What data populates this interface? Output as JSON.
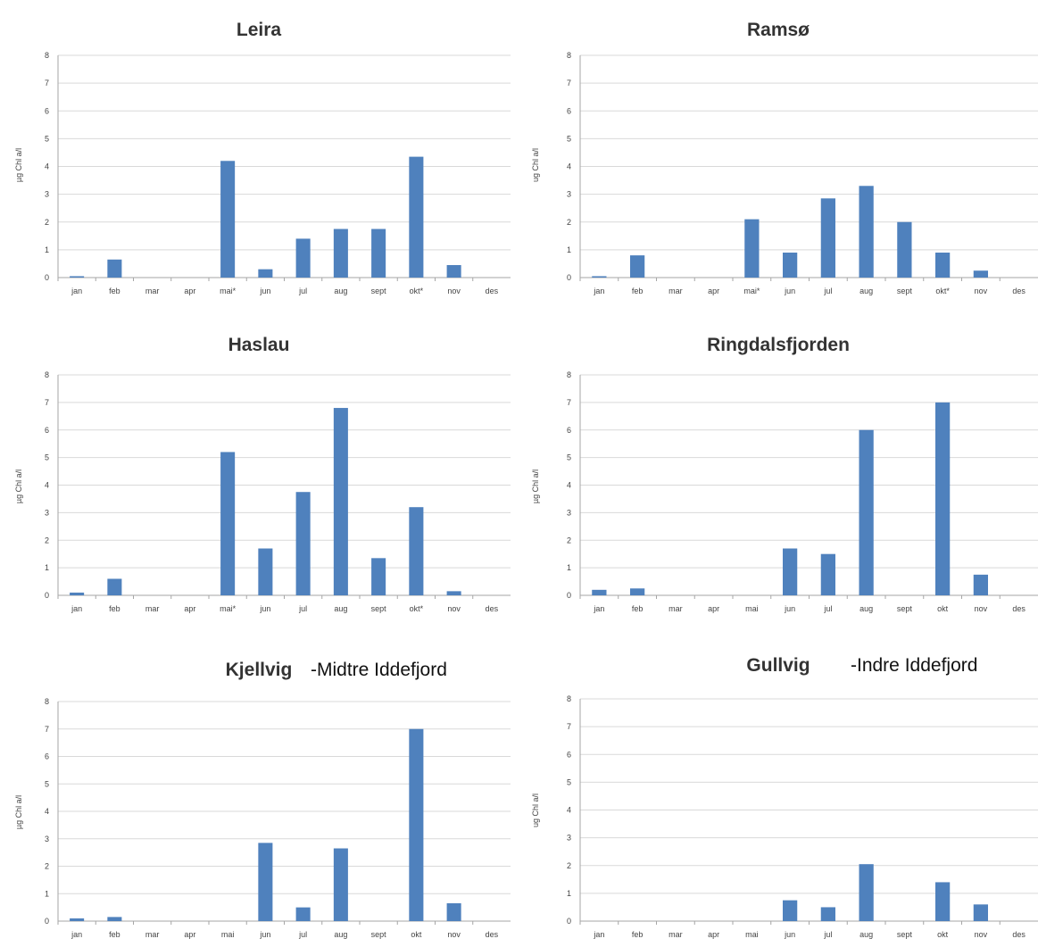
{
  "colors": {
    "bar": "#4f81bd",
    "grid": "#d9d9d9",
    "axis": "#a6a6a6"
  },
  "chart_data": [
    {
      "type": "bar",
      "title": "Leira",
      "subtitle": "",
      "ylabel": "µg Chl a/l",
      "ylim": [
        0,
        8
      ],
      "yticks": [
        "0",
        "1",
        "2",
        "3",
        "4",
        "5",
        "6",
        "7",
        "8"
      ],
      "categories": [
        "jan",
        "feb",
        "mar",
        "apr",
        "mai*",
        "jun",
        "jul",
        "aug",
        "sept",
        "okt*",
        "nov",
        "des"
      ],
      "values": [
        0.05,
        0.65,
        null,
        null,
        4.2,
        0.3,
        1.4,
        1.75,
        1.75,
        4.35,
        0.45,
        null
      ],
      "grid": true
    },
    {
      "type": "bar",
      "title": "Ramsø",
      "subtitle": "",
      "ylabel": "ug Chl a/l",
      "ylim": [
        0,
        8
      ],
      "yticks": [
        "0",
        "1",
        "2",
        "3",
        "4",
        "5",
        "6",
        "7",
        "8"
      ],
      "categories": [
        "jan",
        "feb",
        "mar",
        "apr",
        "mai*",
        "jun",
        "jul",
        "aug",
        "sept",
        "okt*",
        "nov",
        "des"
      ],
      "values": [
        0.05,
        0.8,
        null,
        null,
        2.1,
        0.9,
        2.85,
        3.3,
        2.0,
        0.9,
        0.25,
        null
      ],
      "grid": true
    },
    {
      "type": "bar",
      "title": "Haslau",
      "subtitle": "",
      "ylabel": "µg Chl a/l",
      "ylim": [
        0,
        8
      ],
      "yticks": [
        "0",
        "1",
        "2",
        "3",
        "4",
        "5",
        "6",
        "7",
        "8"
      ],
      "categories": [
        "jan",
        "feb",
        "mar",
        "apr",
        "mai*",
        "jun",
        "jul",
        "aug",
        "sept",
        "okt*",
        "nov",
        "des"
      ],
      "values": [
        0.1,
        0.6,
        null,
        null,
        5.2,
        1.7,
        3.75,
        6.8,
        1.35,
        3.2,
        0.15,
        null
      ],
      "grid": true
    },
    {
      "type": "bar",
      "title": "Ringdalsfjorden",
      "subtitle": "",
      "ylabel": "µg Chl a/l",
      "ylim": [
        0,
        8
      ],
      "yticks": [
        "0",
        "1",
        "2",
        "3",
        "4",
        "5",
        "6",
        "7",
        "8"
      ],
      "categories": [
        "jan",
        "feb",
        "mar",
        "apr",
        "mai",
        "jun",
        "jul",
        "aug",
        "sept",
        "okt",
        "nov",
        "des"
      ],
      "values": [
        0.2,
        0.25,
        null,
        null,
        null,
        1.7,
        1.5,
        6.0,
        null,
        7.0,
        0.75,
        null
      ],
      "grid": true
    },
    {
      "type": "bar",
      "title": "Kjellvig",
      "subtitle": "-Midtre Iddefjord",
      "ylabel": "µg Chl a/l",
      "ylim": [
        0,
        8
      ],
      "yticks": [
        "0",
        "1",
        "2",
        "3",
        "4",
        "5",
        "6",
        "7",
        "8"
      ],
      "categories": [
        "jan",
        "feb",
        "mar",
        "apr",
        "mai",
        "jun",
        "jul",
        "aug",
        "sept",
        "okt",
        "nov",
        "des"
      ],
      "values": [
        0.1,
        0.15,
        null,
        null,
        null,
        2.85,
        0.5,
        2.65,
        null,
        7.0,
        0.65,
        null
      ],
      "grid": true
    },
    {
      "type": "bar",
      "title": "Gullvig",
      "subtitle": "-Indre Iddefjord",
      "ylabel": "ug Chl a/l",
      "ylim": [
        0,
        8
      ],
      "yticks": [
        "0",
        "1",
        "2",
        "3",
        "4",
        "5",
        "6",
        "7",
        "8"
      ],
      "categories": [
        "jan",
        "feb",
        "mar",
        "apr",
        "mai",
        "jun",
        "jul",
        "aug",
        "sept",
        "okt",
        "nov",
        "des"
      ],
      "values": [
        null,
        null,
        null,
        null,
        null,
        0.75,
        0.5,
        2.05,
        null,
        1.4,
        0.6,
        null
      ],
      "grid": true
    }
  ]
}
